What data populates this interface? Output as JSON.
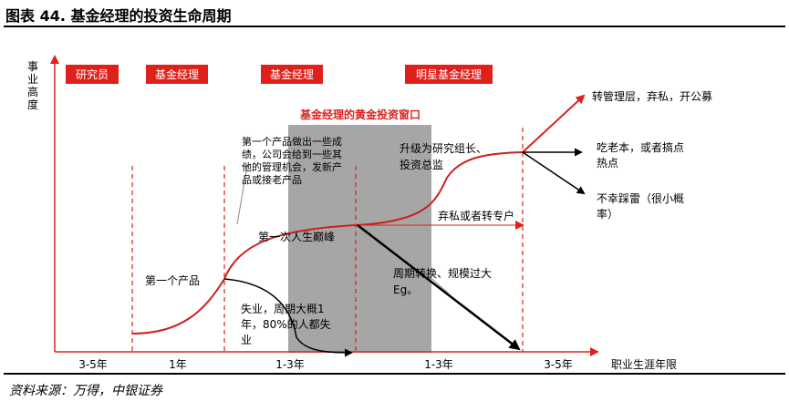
{
  "figure": {
    "title": "图表 44. 基金经理的投资生命周期",
    "source": "资料来源：万得，中银证券"
  },
  "axis": {
    "y_label": [
      "事",
      "业",
      "高",
      "度"
    ],
    "x_label": "职业生涯年限",
    "x_ticks": [
      "3-5年",
      "1年",
      "1-3年",
      "1-3年",
      "3-5年"
    ]
  },
  "stages": [
    "研究员",
    "基金经理",
    "基金经理",
    "明星基金经理"
  ],
  "golden_window": "基金经理的黄金投资窗口",
  "annotations": {
    "first_product": "第一个产品",
    "after_first": [
      "第一个产品做出一些成",
      "绩，公司会给到一些其",
      "他的管理机会，发新产",
      "品或接老产品"
    ],
    "unemployed": [
      "失业，周期大概1",
      "年，80%的人都失",
      "业"
    ],
    "peak": "第一次人生巅峰",
    "promote": [
      "升级为研究组长、",
      "投资总监"
    ],
    "quit_or_switch": "弃私或者转专户",
    "cycle_switch": [
      "周期转换、规模过大",
      "Eg。"
    ],
    "management": "转管理层，弃私，开公募",
    "old_capital": [
      "吃老本，或者搞点",
      "热点"
    ],
    "unlucky": [
      "不幸踩雷（很小概",
      "率）"
    ]
  },
  "colors": {
    "accent": "#e0201b",
    "window_gray": "#a6a6a6",
    "arrow_dark": "#000000",
    "axis_red": "#e0201b"
  }
}
